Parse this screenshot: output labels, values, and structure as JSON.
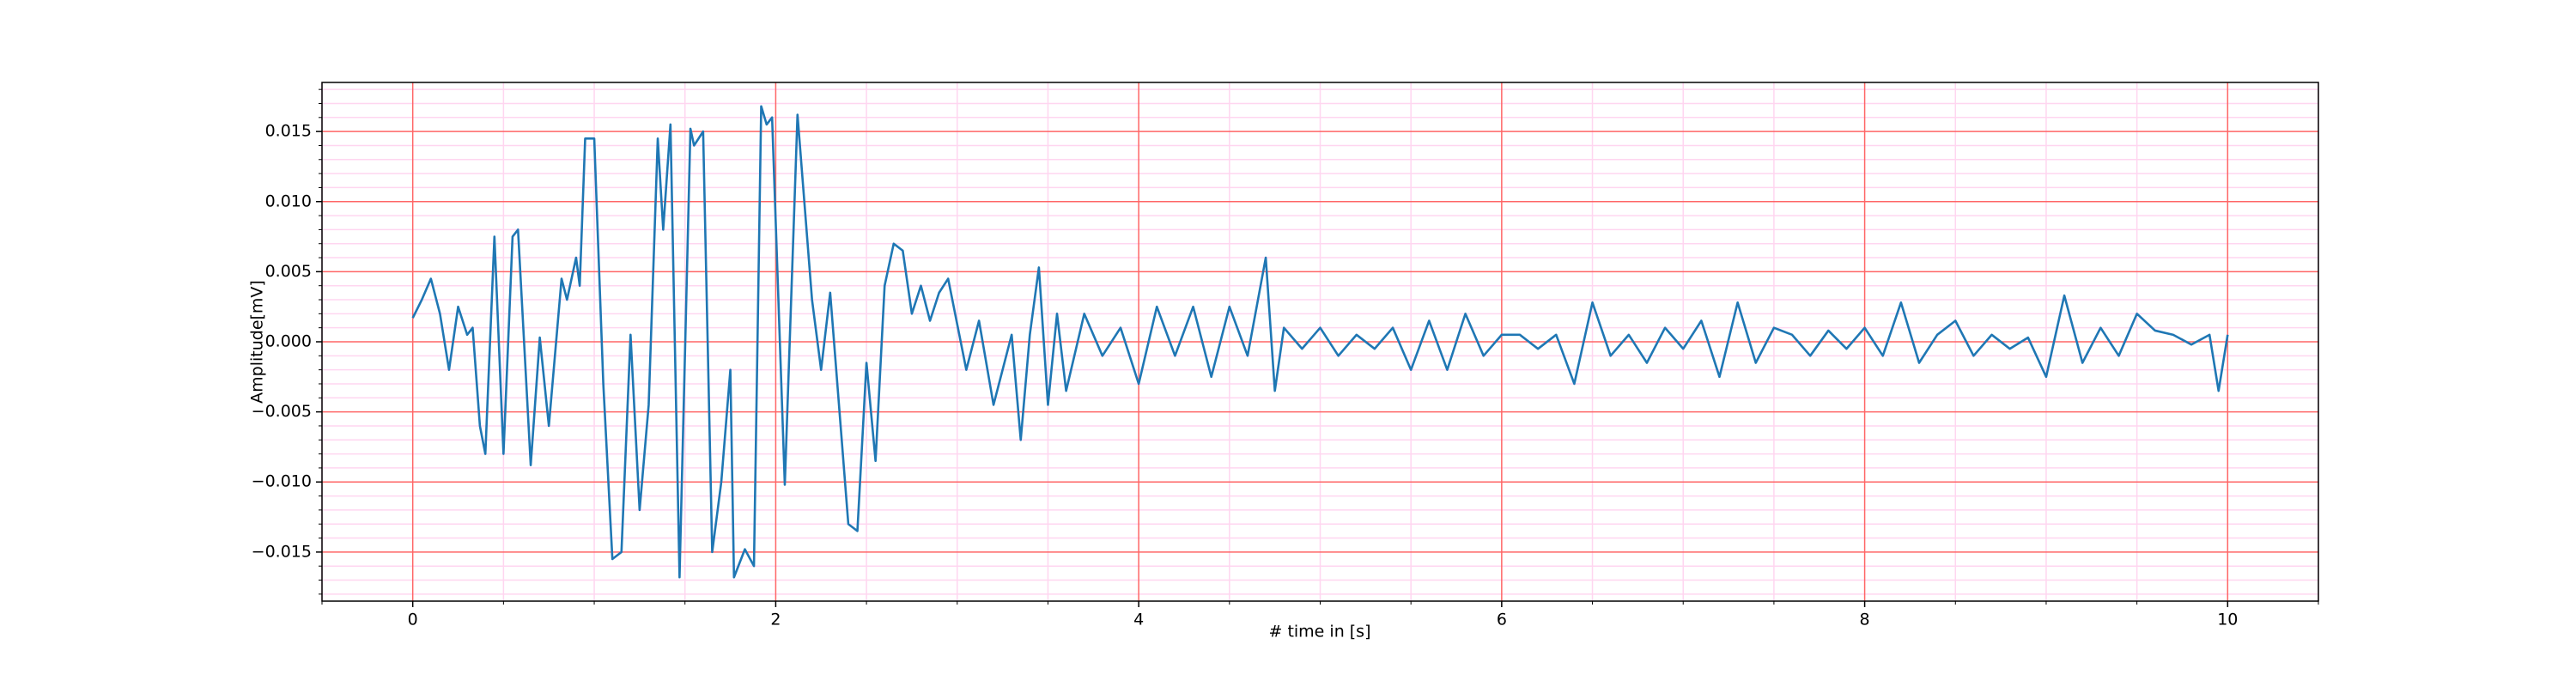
{
  "chart_data": {
    "type": "line",
    "xlabel": "# time in [s]",
    "ylabel": "Amplitude[mV]",
    "xlim": [
      -0.5,
      10.5
    ],
    "ylim": [
      -0.0185,
      0.0185
    ],
    "xticks": [
      0,
      2,
      4,
      6,
      8,
      10
    ],
    "yticks": [
      {
        "value": -0.015,
        "label": "−0.015"
      },
      {
        "value": -0.01,
        "label": "−0.010"
      },
      {
        "value": -0.005,
        "label": "−0.005"
      },
      {
        "value": 0,
        "label": "0.000"
      },
      0.005,
      {
        "value": 0.01,
        "label": "0.010"
      },
      0.015
    ],
    "xminorticks": [
      -0.5,
      0.5,
      1,
      1.5,
      2.5,
      3,
      3.5,
      4.5,
      5,
      5.5,
      6.5,
      7,
      7.5,
      8.5,
      9,
      9.5,
      10.5
    ],
    "yminorticks": [
      -0.018,
      -0.017,
      -0.016,
      -0.014,
      -0.013,
      -0.012,
      -0.011,
      -0.009,
      -0.008,
      -0.007,
      -0.006,
      -0.004,
      -0.003,
      -0.002,
      -0.001,
      0.001,
      0.002,
      0.003,
      0.004,
      0.006,
      0.007,
      0.008,
      0.009,
      0.011,
      0.012,
      0.013,
      0.014,
      0.016,
      0.017,
      0.018
    ],
    "grid": true,
    "grid_color": "#ff6666",
    "minor_grid_color": "#ffd6f0",
    "series": [
      {
        "color": "#1f77b4",
        "x": [
          0,
          0.05,
          0.1,
          0.15,
          0.2,
          0.25,
          0.3,
          0.33,
          0.37,
          0.4,
          0.45,
          0.5,
          0.55,
          0.58,
          0.65,
          0.7,
          0.75,
          0.82,
          0.85,
          0.9,
          0.92,
          0.95,
          1.0,
          1.05,
          1.1,
          1.15,
          1.2,
          1.25,
          1.3,
          1.35,
          1.38,
          1.42,
          1.47,
          1.53,
          1.55,
          1.6,
          1.65,
          1.7,
          1.75,
          1.77,
          1.83,
          1.88,
          1.92,
          1.95,
          1.98,
          2.05,
          2.12,
          2.2,
          2.25,
          2.3,
          2.4,
          2.45,
          2.5,
          2.55,
          2.6,
          2.65,
          2.7,
          2.75,
          2.8,
          2.85,
          2.9,
          2.95,
          3.05,
          3.12,
          3.2,
          3.3,
          3.35,
          3.4,
          3.45,
          3.5,
          3.55,
          3.6,
          3.7,
          3.8,
          3.9,
          4.0,
          4.1,
          4.2,
          4.3,
          4.4,
          4.5,
          4.6,
          4.7,
          4.75,
          4.8,
          4.9,
          5.0,
          5.1,
          5.2,
          5.3,
          5.4,
          5.5,
          5.6,
          5.7,
          5.8,
          5.9,
          6.0,
          6.1,
          6.2,
          6.3,
          6.4,
          6.5,
          6.6,
          6.7,
          6.8,
          6.9,
          7.0,
          7.1,
          7.2,
          7.3,
          7.4,
          7.5,
          7.6,
          7.7,
          7.8,
          7.9,
          8.0,
          8.1,
          8.2,
          8.3,
          8.4,
          8.5,
          8.6,
          8.7,
          8.8,
          8.9,
          9.0,
          9.1,
          9.2,
          9.3,
          9.4,
          9.5,
          9.6,
          9.7,
          9.8,
          9.9,
          9.95,
          10.0
        ],
        "values": [
          0.0017,
          0.003,
          0.0045,
          0.002,
          -0.002,
          0.0025,
          0.0005,
          0.001,
          -0.006,
          -0.008,
          0.0075,
          -0.008,
          0.0075,
          0.008,
          -0.0088,
          0.0003,
          -0.006,
          0.0045,
          0.003,
          0.006,
          0.004,
          0.0145,
          0.0145,
          -0.003,
          -0.0155,
          -0.015,
          0.0005,
          -0.012,
          -0.0045,
          0.0145,
          0.008,
          0.0155,
          -0.0168,
          0.0152,
          0.014,
          0.015,
          -0.015,
          -0.01,
          -0.002,
          -0.0168,
          -0.0148,
          -0.016,
          0.0168,
          0.0155,
          0.016,
          -0.0102,
          0.0162,
          0.003,
          -0.002,
          0.0035,
          -0.013,
          -0.0135,
          -0.0015,
          -0.0085,
          0.004,
          0.007,
          0.0065,
          0.002,
          0.004,
          0.0015,
          0.0035,
          0.0045,
          -0.002,
          0.0015,
          -0.0045,
          0.0005,
          -0.007,
          0.0005,
          0.0053,
          -0.0045,
          0.002,
          -0.0035,
          0.002,
          -0.001,
          0.001,
          -0.003,
          0.0025,
          -0.001,
          0.0025,
          -0.0025,
          0.0025,
          -0.001,
          0.006,
          -0.0035,
          0.001,
          -0.0005,
          0.001,
          -0.001,
          0.0005,
          -0.0005,
          0.001,
          -0.002,
          0.0015,
          -0.002,
          0.002,
          -0.001,
          0.0005,
          0.0005,
          -0.0005,
          0.0005,
          -0.003,
          0.0028,
          -0.001,
          0.0005,
          -0.0015,
          0.001,
          -0.0005,
          0.0015,
          -0.0025,
          0.0028,
          -0.0015,
          0.001,
          0.0005,
          -0.001,
          0.0008,
          -0.0005,
          0.001,
          -0.001,
          0.0028,
          -0.0015,
          0.0005,
          0.0015,
          -0.001,
          0.0005,
          -0.0005,
          0.0003,
          -0.0025,
          0.0033,
          -0.0015,
          0.001,
          -0.001,
          0.002,
          0.0008,
          0.0005,
          -0.0002,
          0.0005,
          -0.0035,
          0.0005
        ]
      }
    ]
  }
}
